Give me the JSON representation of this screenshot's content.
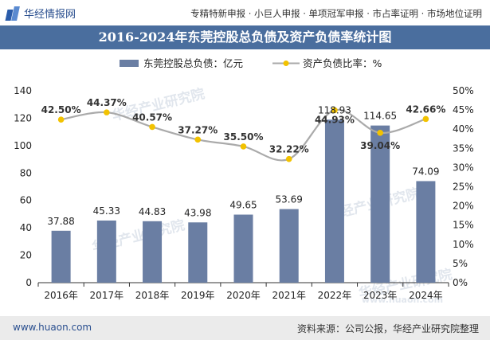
{
  "header": {
    "logo_text": "华经情报网",
    "tags": "专精特新申报 · 小巨人申报 · 单项冠军申报 · 市占率证明 · 市场地位证明"
  },
  "title": "2016-2024年东莞控股总负债及资产负债率统计图",
  "footer": {
    "website": "www.huaon.com",
    "source": "资料来源：公司公报，华经产业研究院整理"
  },
  "watermarks": [
    "华经产业研究院",
    "华经产业研究院",
    "华经产业研究院",
    "华经产业研究院",
    "www.huaon.com"
  ],
  "colors": {
    "bar": "#6a7ea3",
    "line": "#aaaaaa",
    "dot": "#f2c200",
    "title_band": "#4a6e9e"
  },
  "chart_data": {
    "type": "bar",
    "categories": [
      "2016年",
      "2017年",
      "2018年",
      "2019年",
      "2020年",
      "2021年",
      "2022年",
      "2023年",
      "2024年"
    ],
    "series": [
      {
        "name": "东莞控股总负债：亿元",
        "type": "bar",
        "axis": "left",
        "values": [
          37.88,
          45.33,
          44.83,
          43.98,
          49.65,
          53.69,
          118.93,
          114.65,
          74.09
        ],
        "labels": [
          "37.88",
          "45.33",
          "44.83",
          "43.98",
          "49.65",
          "53.69",
          "118.93",
          "114.65",
          "74.09"
        ]
      },
      {
        "name": "资产负债比率：%",
        "type": "line",
        "axis": "right",
        "values": [
          42.5,
          44.37,
          40.57,
          37.27,
          35.5,
          32.22,
          44.93,
          39.04,
          42.66
        ],
        "labels": [
          "42.50%",
          "44.37%",
          "40.57%",
          "37.27%",
          "35.50%",
          "32.22%",
          "44.93%",
          "39.04%",
          "42.66%"
        ]
      }
    ],
    "y_left": {
      "min": 0,
      "max": 140,
      "ticks": [
        "0",
        "20",
        "40",
        "60",
        "80",
        "100",
        "120",
        "140"
      ]
    },
    "y_right": {
      "min": 0,
      "max": 50,
      "ticks": [
        "0%",
        "5%",
        "10%",
        "15%",
        "20%",
        "25%",
        "30%",
        "35%",
        "40%",
        "45%",
        "50%"
      ]
    },
    "legend_position": "top-center",
    "grid": false
  }
}
